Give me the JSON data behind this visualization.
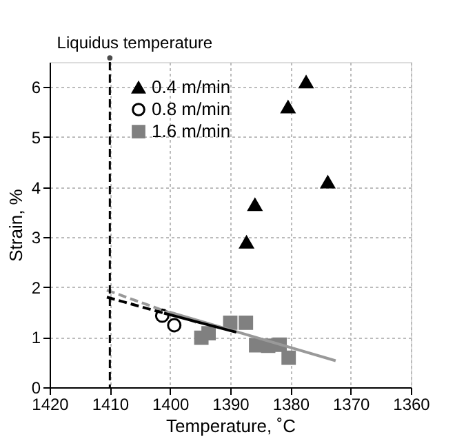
{
  "chart_data": {
    "type": "scatter",
    "xlabel": "Temperature, ˚C",
    "ylabel": "Strain, %",
    "xlim": [
      1420,
      1360
    ],
    "xticks": [
      1420,
      1410,
      1400,
      1390,
      1380,
      1370,
      1360
    ],
    "ylim": [
      0,
      6.5
    ],
    "yticks": [
      0,
      1,
      2,
      3,
      4,
      5,
      6
    ],
    "grid": true,
    "legend": "top left",
    "series": [
      {
        "name": "0.4 m/min",
        "color": "#000000",
        "marker": "triangle",
        "x": [
          1377.4,
          1380.4,
          1373.8,
          1385.9,
          1387.3
        ],
        "values": [
          6.1,
          5.6,
          4.1,
          3.65,
          2.9
        ]
      },
      {
        "name": "0.8 m/min",
        "color": "#000000",
        "marker": "circle",
        "x": [
          1401.3,
          1399.3
        ],
        "values": [
          1.43,
          1.24
        ]
      },
      {
        "name": "1.6 m/min",
        "color": "#808080",
        "marker": "square",
        "x": [
          1394.8,
          1393.6,
          1390.0,
          1387.4,
          1385.7,
          1383.7,
          1381.8,
          1380.3
        ],
        "values": [
          0.99,
          1.08,
          1.29,
          1.29,
          0.84,
          0.83,
          0.85,
          0.59
        ]
      },
      {
        "type": "line",
        "color": "#999999",
        "line_style": "dashed",
        "x": [
          1410.5,
          1395
        ],
        "values": [
          1.94,
          1.27
        ]
      },
      {
        "type": "line",
        "color": "#999999",
        "line_style": "solid",
        "x": [
          1400,
          1372.5
        ],
        "values": [
          1.5,
          0.53
        ]
      },
      {
        "type": "line",
        "color": "#000000",
        "line_style": "dashed",
        "x": [
          1410.5,
          1401
        ],
        "values": [
          1.8,
          1.48
        ]
      },
      {
        "type": "line",
        "color": "#000000",
        "line_style": "solid",
        "x": [
          1401,
          1389
        ],
        "values": [
          1.48,
          1.1
        ]
      }
    ],
    "ref_lines": [
      {
        "axis": "x",
        "value": 1410,
        "label": "Liquidus temperature",
        "color": "#000000",
        "line_style": "dashed"
      }
    ]
  }
}
